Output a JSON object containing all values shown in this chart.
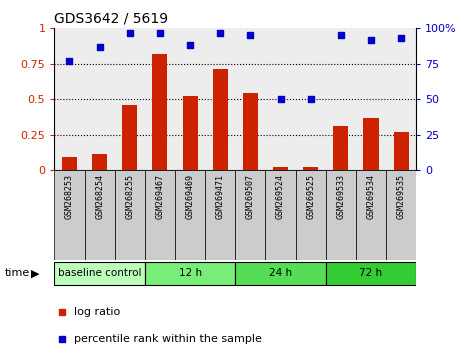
{
  "title": "GDS3642 / 5619",
  "samples": [
    "GSM268253",
    "GSM268254",
    "GSM268255",
    "GSM269467",
    "GSM269469",
    "GSM269471",
    "GSM269507",
    "GSM269524",
    "GSM269525",
    "GSM269533",
    "GSM269534",
    "GSM269535"
  ],
  "log_ratio": [
    0.09,
    0.11,
    0.46,
    0.82,
    0.52,
    0.71,
    0.54,
    0.02,
    0.02,
    0.31,
    0.37,
    0.27
  ],
  "percentile_rank": [
    77,
    87,
    97,
    97,
    88,
    97,
    95,
    50,
    50,
    95,
    92,
    93
  ],
  "bar_color": "#cc2200",
  "dot_color": "#0000cc",
  "ylim_left": [
    0,
    1.0
  ],
  "ylim_right": [
    0,
    100
  ],
  "yticks_left": [
    0,
    0.25,
    0.5,
    0.75,
    1.0
  ],
  "yticks_right": [
    0,
    25,
    50,
    75,
    100
  ],
  "ytick_labels_left": [
    "0",
    "0.25",
    "0.5",
    "0.75",
    "1"
  ],
  "ytick_labels_right": [
    "0",
    "25",
    "50",
    "75",
    "100%"
  ],
  "groups": [
    {
      "label": "baseline control",
      "start": 0,
      "end": 3,
      "color": "#bbffbb"
    },
    {
      "label": "12 h",
      "start": 3,
      "end": 6,
      "color": "#77ee77"
    },
    {
      "label": "24 h",
      "start": 6,
      "end": 9,
      "color": "#55dd55"
    },
    {
      "label": "72 h",
      "start": 9,
      "end": 12,
      "color": "#33cc33"
    }
  ],
  "grid_dotted_at": [
    0.25,
    0.5,
    0.75
  ],
  "legend_log_ratio": "log ratio",
  "legend_percentile": "percentile rank within the sample",
  "time_label": "time",
  "figsize": [
    4.73,
    3.54
  ],
  "dpi": 100
}
